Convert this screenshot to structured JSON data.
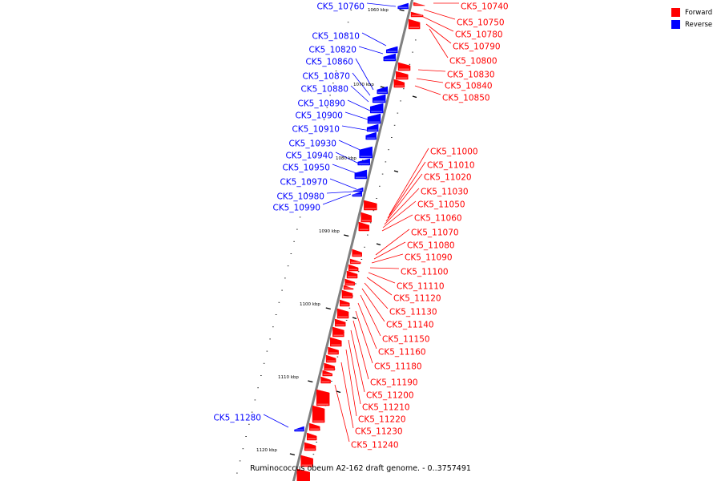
{
  "caption": "Ruminococcus obeum A2-162 draft genome. - 0..3757491",
  "colors": {
    "forward": "#ff0000",
    "reverse": "#0000ff",
    "backbone": "#808080"
  },
  "legend": [
    {
      "label": "Forward",
      "color": "#ff0000"
    },
    {
      "label": "Reverse",
      "color": "#0000ff"
    }
  ],
  "ticks": [
    "1060 kbp",
    "1070 kbp",
    "1080 kbp",
    "1090 kbp",
    "1100 kbp",
    "1110 kbp",
    "1120 kbp"
  ],
  "forward_genes": [
    "CK5_10740",
    "CK5_10750",
    "CK5_10780",
    "CK5_10790",
    "CK5_10800",
    "CK5_10830",
    "CK5_10840",
    "CK5_10850",
    "CK5_11000",
    "CK5_11010",
    "CK5_11020",
    "CK5_11030",
    "CK5_11050",
    "CK5_11060",
    "CK5_11070",
    "CK5_11080",
    "CK5_11090",
    "CK5_11100",
    "CK5_11110",
    "CK5_11120",
    "CK5_11130",
    "CK5_11140",
    "CK5_11150",
    "CK5_11160",
    "CK5_11180",
    "CK5_11190",
    "CK5_11200",
    "CK5_11210",
    "CK5_11220",
    "CK5_11230",
    "CK5_11240"
  ],
  "reverse_genes": [
    "CK5_10760",
    "CK5_10810",
    "CK5_10820",
    "CK5_10860",
    "CK5_10870",
    "CK5_10880",
    "CK5_10890",
    "CK5_10900",
    "CK5_10910",
    "CK5_10930",
    "CK5_10940",
    "CK5_10950",
    "CK5_10970",
    "CK5_10980",
    "CK5_10990",
    "CK5_11280"
  ]
}
